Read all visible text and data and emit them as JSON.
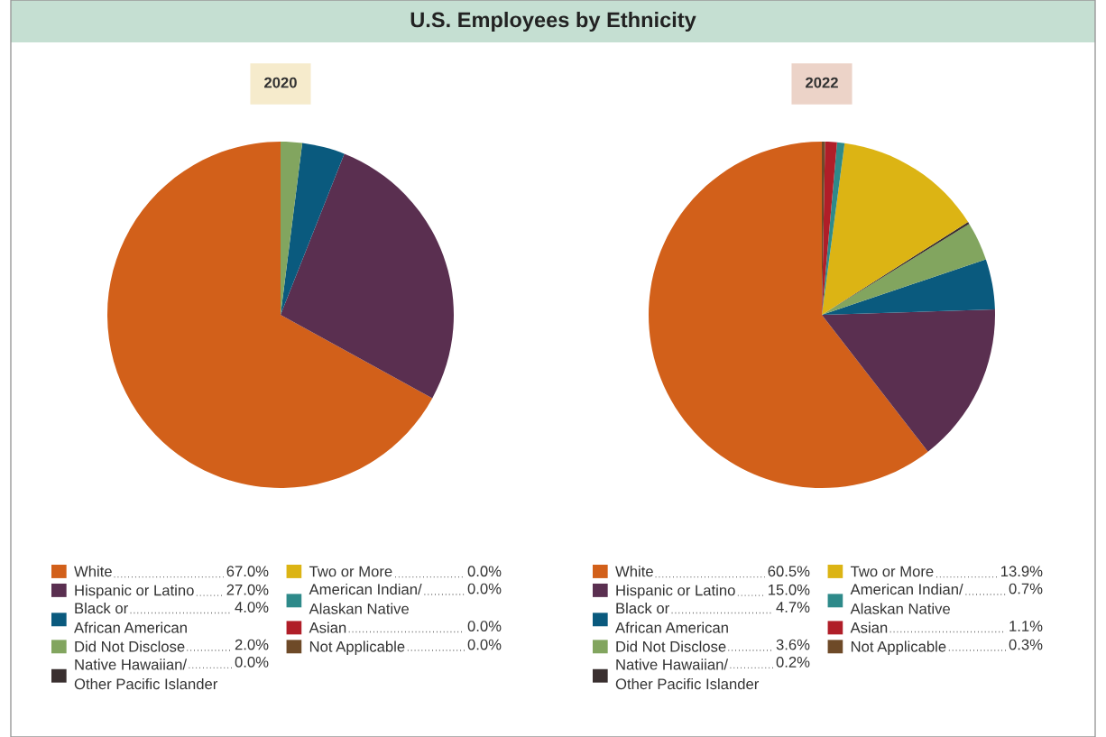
{
  "chart_data": [
    {
      "type": "pie",
      "title": "U.S. Employees by Ethnicity",
      "subtitle": "2020",
      "categories": [
        "White",
        "Hispanic or Latino",
        "Black or\nAfrican American",
        "Did Not Disclose",
        "Native Hawaiian/\nOther Pacific Islander",
        "Two or More",
        "American Indian/\nAlaskan Native",
        "Asian",
        "Not Applicable"
      ],
      "values": [
        67.0,
        27.0,
        4.0,
        2.0,
        0.0,
        0.0,
        0.0,
        0.0,
        0.0
      ],
      "value_labels": [
        "67.0%",
        "27.0%",
        "4.0%",
        "2.0%",
        "0.0%",
        "0.0%",
        "0.0%",
        "0.0%",
        "0.0%"
      ],
      "colors": [
        "#d2601a",
        "#5a2f50",
        "#0a5a7e",
        "#82a55f",
        "#3a3030",
        "#dcb414",
        "#2e8a8a",
        "#b01e28",
        "#6e4a28"
      ],
      "legend": "bottom"
    },
    {
      "type": "pie",
      "subtitle": "2022",
      "categories": [
        "White",
        "Hispanic or Latino",
        "Black or\nAfrican American",
        "Did Not Disclose",
        "Native Hawaiian/\nOther Pacific Islander",
        "Two or More",
        "American Indian/\nAlaskan Native",
        "Asian",
        "Not Applicable"
      ],
      "values": [
        60.5,
        15.0,
        4.7,
        3.6,
        0.2,
        13.9,
        0.7,
        1.1,
        0.3
      ],
      "value_labels": [
        "60.5%",
        "15.0%",
        "4.7%",
        "3.6%",
        "0.2%",
        "13.9%",
        "0.7%",
        "1.1%",
        "0.3%"
      ],
      "colors": [
        "#d2601a",
        "#5a2f50",
        "#0a5a7e",
        "#82a55f",
        "#3a3030",
        "#dcb414",
        "#2e8a8a",
        "#b01e28",
        "#6e4a28"
      ],
      "legend": "bottom"
    }
  ]
}
